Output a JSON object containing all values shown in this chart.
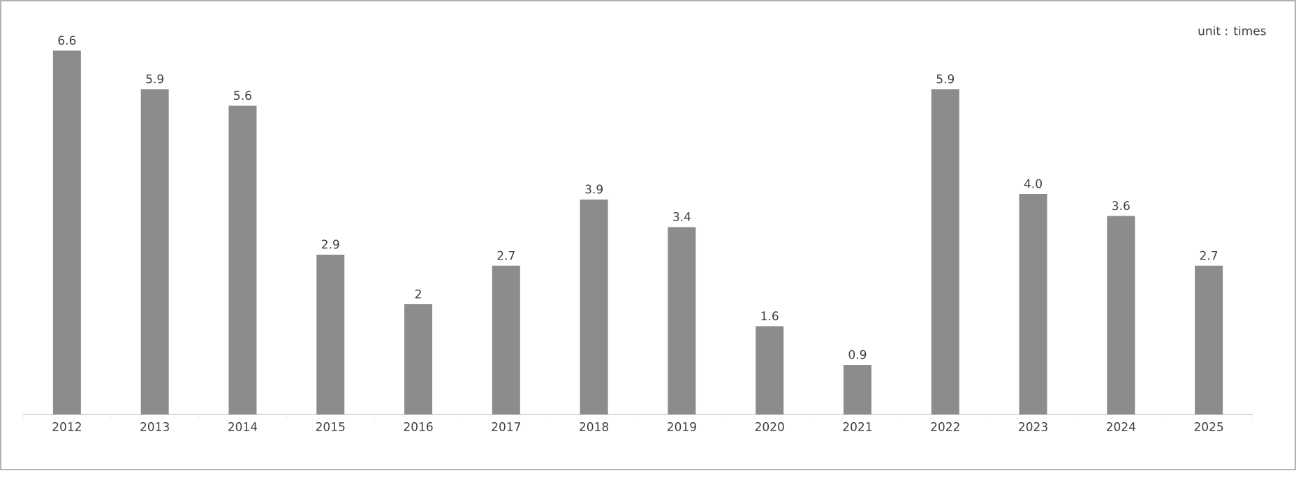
{
  "chart_data": {
    "type": "bar",
    "annotations": [
      "unit : times"
    ],
    "categories": [
      "2012",
      "2013",
      "2014",
      "2015",
      "2016",
      "2017",
      "2018",
      "2019",
      "2020",
      "2021",
      "2022",
      "2023",
      "2024",
      "2025"
    ],
    "values": [
      6.6,
      5.9,
      5.6,
      2.9,
      2,
      2.7,
      3.9,
      3.4,
      1.6,
      0.9,
      5.9,
      4.0,
      3.6,
      2.7
    ],
    "value_labels": [
      "6.6",
      "5.9",
      "5.6",
      "2.9",
      "2",
      "2.7",
      "3.9",
      "3.4",
      "1.6",
      "0.9",
      "5.9",
      "4.0",
      "3.6",
      "2.7"
    ],
    "color": "#8c8c8c",
    "tick_labels": "x"
  }
}
